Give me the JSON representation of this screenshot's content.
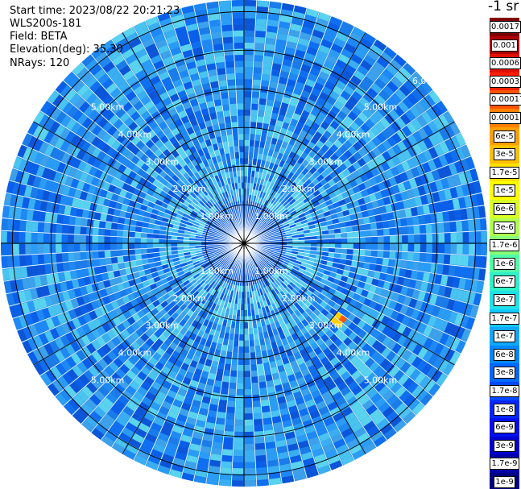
{
  "header": {
    "start_time": "Start time: 2023/08/22 20:21:23",
    "device": "WLS200s-181",
    "field": "Field: BETA",
    "elevation": "Elevation(deg): 35.30",
    "nrays": "NRays: 120"
  },
  "ppi": {
    "max_range_km": 6.3,
    "rays": 120,
    "ring_labels": [
      "1.00km",
      "2.00km",
      "3.00km",
      "4.00km",
      "5.00km"
    ],
    "edge_label": "6.0"
  },
  "colorbar": {
    "unit": "-1 sr",
    "labels": [
      "0.0017",
      "0.001",
      "0.0006",
      "0.0003",
      "0.00017",
      "0.0001",
      "6e-5",
      "3e-5",
      "1.7e-5",
      "1e-5",
      "6e-6",
      "3e-6",
      "1.7e-6",
      "1e-6",
      "6e-7",
      "3e-7",
      "1.7e-7",
      "1e-7",
      "6e-8",
      "3e-8",
      "1.7e-8",
      "1e-8",
      "6e-9",
      "3e-9",
      "1.7e-9",
      "1e-9"
    ],
    "colors": [
      "#800000",
      "#b00000",
      "#e01000",
      "#ff2000",
      "#ff5500",
      "#ff8000",
      "#ffa000",
      "#ffc000",
      "#ffe000",
      "#ffff00",
      "#d8ff28",
      "#b0ff50",
      "#88ff78",
      "#50ffa8",
      "#30f0c8",
      "#20e0e8",
      "#10c8ff",
      "#10a8ff",
      "#0088ff",
      "#0068ff",
      "#0048ff",
      "#0028ff",
      "#0010f0",
      "#0000d0",
      "#0000a8",
      "#000080"
    ]
  }
}
